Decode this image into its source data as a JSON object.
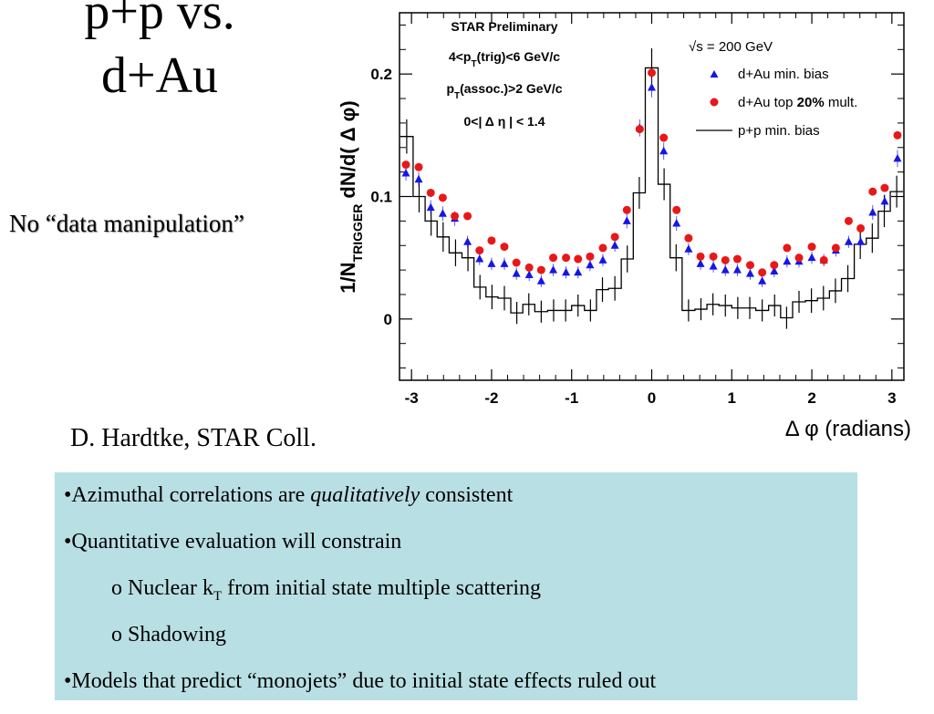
{
  "slide": {
    "title_line1": "p+p vs.",
    "title_line2": "d+Au",
    "side_note": "No “data manipulation”",
    "credit": "D. Hardtke, STAR Coll."
  },
  "bullets": [
    {
      "level": 0,
      "pre": "•Azimuthal correlations are ",
      "em": "qualitatively",
      "post": " consistent"
    },
    {
      "level": 0,
      "pre": "•Quantitative evaluation will constrain"
    },
    {
      "level": 1,
      "pre": "o Nuclear k",
      "sub": "T",
      "post": " from initial state multiple scattering"
    },
    {
      "level": 1,
      "pre": "o Shadowing"
    },
    {
      "level": 0,
      "pre": "•Models that predict “monojets” due to initial state effects ruled out"
    }
  ],
  "chart_data": {
    "type": "scatter",
    "annotations": {
      "header": "STAR Preliminary",
      "line2_pre": "4<p",
      "line2_sub": "T",
      "line2_post": "(trig)<6 GeV/c",
      "line3_pre": "p",
      "line3_sub": "T",
      "line3_post": "(assoc.)>2 GeV/c",
      "line4": "0<| Δ η | < 1.4"
    },
    "xlabel": "Δ φ (radians)",
    "ylabel_pre": "1/N",
    "ylabel_sub": "TRIGGER",
    "ylabel_post": " dN/d( Δ φ)",
    "xlim": [
      -3.15,
      3.15
    ],
    "ylim": [
      -0.05,
      0.25
    ],
    "xticks": [
      -3,
      -2,
      -1,
      0,
      1,
      2,
      3
    ],
    "yticks": [
      0,
      0.1,
      0.2
    ],
    "ytick_labels": [
      "0",
      "0.1",
      "0.2"
    ],
    "legend_position": "top-right",
    "legend": {
      "energy_label": "√s = 200 GeV",
      "dau_minbias": "d+Au min. bias",
      "dau_top_pre": "d+Au top ",
      "dau_top_bold": "20%",
      "dau_top_post": " mult.",
      "pp_minbias": "p+p min. bias"
    },
    "colors": {
      "dau_minbias": "#1515e8",
      "dau_top": "#e81818",
      "pp": "#000000"
    },
    "x": [
      -3.07,
      -2.91,
      -2.76,
      -2.61,
      -2.46,
      -2.3,
      -2.15,
      -2.0,
      -1.84,
      -1.69,
      -1.53,
      -1.38,
      -1.23,
      -1.07,
      -0.92,
      -0.77,
      -0.61,
      -0.46,
      -0.31,
      -0.15,
      0.0,
      0.15,
      0.31,
      0.46,
      0.61,
      0.77,
      0.92,
      1.07,
      1.23,
      1.38,
      1.53,
      1.69,
      1.84,
      2.0,
      2.15,
      2.3,
      2.46,
      2.61,
      2.76,
      2.91,
      3.07
    ],
    "series": [
      {
        "key": "dau_minbias",
        "marker": "triangle",
        "values": [
          0.119,
          0.114,
          0.091,
          0.086,
          0.082,
          0.063,
          0.049,
          0.045,
          0.045,
          0.037,
          0.036,
          0.031,
          0.04,
          0.038,
          0.038,
          0.044,
          0.048,
          0.06,
          0.08,
          0.156,
          0.189,
          0.137,
          0.078,
          0.057,
          0.045,
          0.043,
          0.04,
          0.04,
          0.037,
          0.031,
          0.039,
          0.047,
          0.047,
          0.05,
          0.048,
          0.056,
          0.063,
          0.063,
          0.087,
          0.096,
          0.131
        ],
        "errors": [
          0.006,
          0.006,
          0.006,
          0.006,
          0.006,
          0.005,
          0.005,
          0.005,
          0.005,
          0.005,
          0.005,
          0.005,
          0.005,
          0.005,
          0.005,
          0.005,
          0.005,
          0.005,
          0.006,
          0.007,
          0.008,
          0.007,
          0.006,
          0.005,
          0.005,
          0.005,
          0.005,
          0.005,
          0.005,
          0.005,
          0.005,
          0.005,
          0.005,
          0.005,
          0.005,
          0.005,
          0.005,
          0.005,
          0.006,
          0.006,
          0.007
        ]
      },
      {
        "key": "dau_top",
        "marker": "circle",
        "values": [
          0.126,
          0.124,
          0.103,
          0.099,
          0.084,
          0.084,
          0.056,
          0.064,
          0.059,
          0.046,
          0.042,
          0.04,
          0.05,
          0.05,
          0.049,
          0.051,
          0.058,
          0.067,
          0.089,
          0.155,
          0.201,
          0.148,
          0.089,
          0.066,
          0.051,
          0.051,
          0.048,
          0.049,
          0.044,
          0.038,
          0.044,
          0.058,
          0.05,
          0.059,
          0.048,
          0.058,
          0.08,
          0.074,
          0.104,
          0.107,
          0.15
        ]
      }
    ],
    "pp_minbias": {
      "bin_edges": [
        -3.14,
        -2.98,
        -2.83,
        -2.68,
        -2.53,
        -2.37,
        -2.22,
        -2.07,
        -1.92,
        -1.76,
        -1.61,
        -1.46,
        -1.3,
        -1.15,
        -1.0,
        -0.84,
        -0.69,
        -0.54,
        -0.38,
        -0.23,
        -0.08,
        0.08,
        0.23,
        0.38,
        0.54,
        0.69,
        0.84,
        1.0,
        1.15,
        1.3,
        1.46,
        1.61,
        1.76,
        1.92,
        2.07,
        2.22,
        2.37,
        2.53,
        2.68,
        2.83,
        2.98,
        3.14
      ],
      "values": [
        0.149,
        0.1,
        0.08,
        0.067,
        0.054,
        0.05,
        0.026,
        0.018,
        0.017,
        0.005,
        0.012,
        0.006,
        0.007,
        0.007,
        0.011,
        0.007,
        0.024,
        0.025,
        0.049,
        0.103,
        0.205,
        0.11,
        0.05,
        0.007,
        0.008,
        0.012,
        0.011,
        0.009,
        0.009,
        0.007,
        0.011,
        0.001,
        0.014,
        0.015,
        0.017,
        0.023,
        0.033,
        0.061,
        0.066,
        0.088,
        0.104
      ],
      "errors": [
        0.014,
        0.013,
        0.012,
        0.012,
        0.011,
        0.011,
        0.01,
        0.01,
        0.01,
        0.009,
        0.009,
        0.009,
        0.009,
        0.009,
        0.009,
        0.009,
        0.01,
        0.01,
        0.011,
        0.013,
        0.016,
        0.013,
        0.011,
        0.009,
        0.009,
        0.009,
        0.009,
        0.009,
        0.009,
        0.009,
        0.009,
        0.009,
        0.009,
        0.01,
        0.01,
        0.01,
        0.011,
        0.012,
        0.012,
        0.013,
        0.013
      ]
    }
  }
}
